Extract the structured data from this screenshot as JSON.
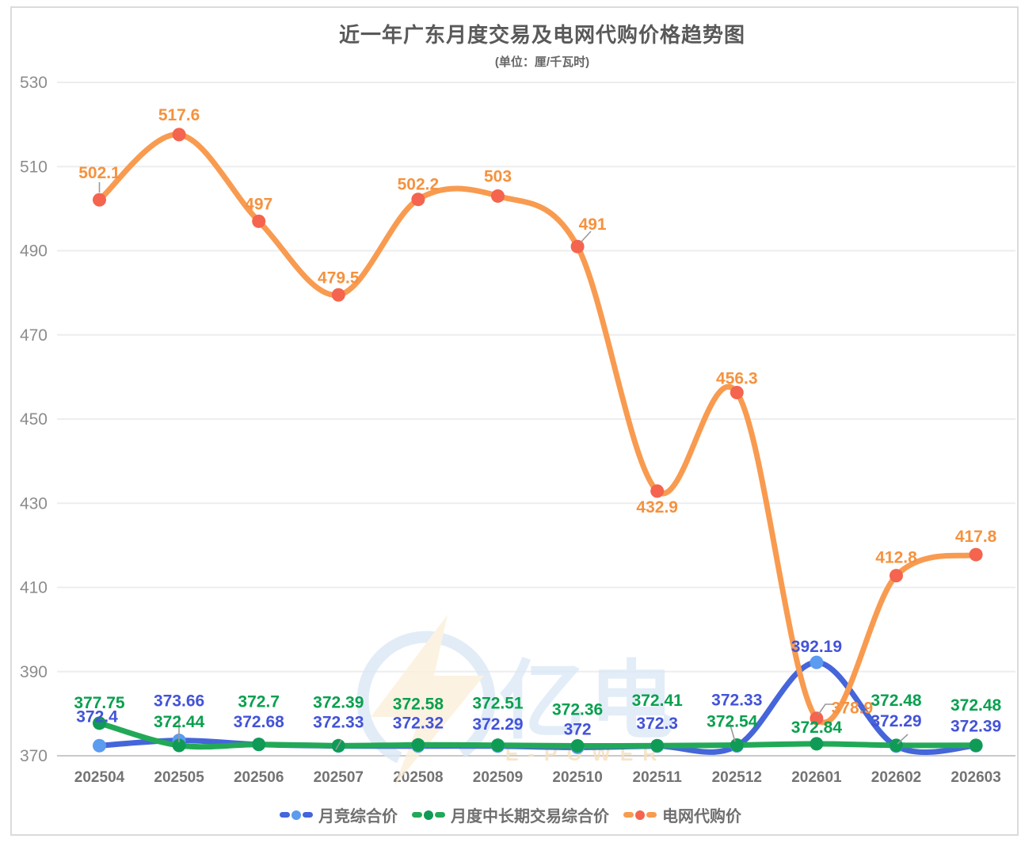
{
  "title": "近一年广东月度交易及电网代购价格趋势图",
  "subtitle": "(单位：厘/千瓦时)",
  "watermark": {
    "logo_text": "亿电",
    "slogan": "E-POWER"
  },
  "chart_data": {
    "type": "line",
    "title": "近一年广东月度交易及电网代购价格趋势图",
    "subtitle": "(单位：厘/千瓦时)",
    "categories": [
      "202504",
      "202505",
      "202506",
      "202507",
      "202508",
      "202509",
      "202510",
      "202511",
      "202512",
      "202601",
      "202602",
      "202603"
    ],
    "series": [
      {
        "name": "月竞综合价",
        "color": "#4565da",
        "marker_color": "#5b9bf0",
        "label_color": "#4353d8",
        "values": [
          372.4,
          373.66,
          372.68,
          372.33,
          372.32,
          372.29,
          372,
          372.3,
          372.33,
          392.19,
          372.29,
          372.39
        ]
      },
      {
        "name": "月度中长期交易综合价",
        "color": "#22a957",
        "marker_color": "#0f9b55",
        "label_color": "#09a04f",
        "values": [
          377.75,
          372.44,
          372.7,
          372.39,
          372.58,
          372.51,
          372.36,
          372.41,
          372.54,
          372.84,
          372.48,
          372.48
        ]
      },
      {
        "name": "电网代购价",
        "color": "#f89b50",
        "marker_color": "#f4644e",
        "label_color": "#f5923f",
        "values": [
          502.1,
          517.6,
          497,
          479.5,
          502.2,
          503,
          491,
          432.9,
          456.3,
          378.9,
          412.8,
          417.8
        ]
      }
    ],
    "xlabel": "",
    "ylabel": "",
    "ylim": [
      370,
      530
    ],
    "ytick_step": 20,
    "grid": true,
    "legend_position": "bottom",
    "axis_text_color": "#8c8c8c",
    "x_axis_text_color": "#737373"
  }
}
